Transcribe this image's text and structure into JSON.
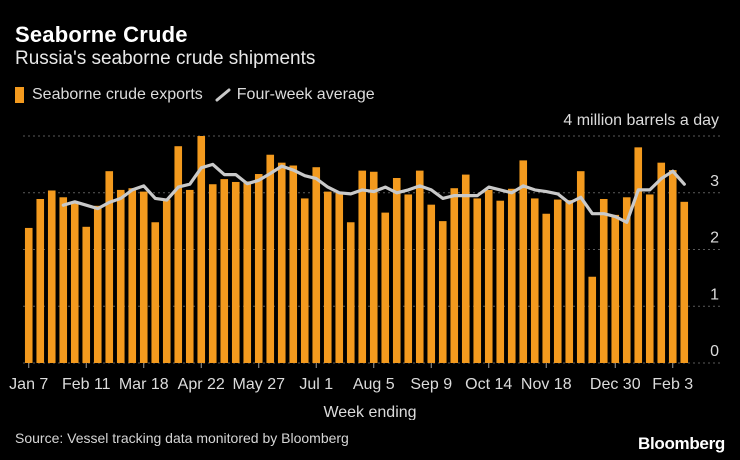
{
  "header": {
    "title": "Seaborne Crude",
    "subtitle": "Russia's seaborne crude shipments"
  },
  "legend": {
    "bars_label": "Seaborne crude exports",
    "line_label": "Four-week average"
  },
  "colors": {
    "bar": "#F39A1E",
    "line": "#C9C9C9",
    "grid": "#5a5a5a",
    "text": "#ffffff",
    "axis_text": "#dcdcdc"
  },
  "footer": {
    "source": "Source: Vessel tracking data monitored by Bloomberg",
    "brand": "Bloomberg"
  },
  "chart_data": {
    "type": "bar",
    "title": "Seaborne Crude",
    "subtitle": "Russia's seaborne crude shipments",
    "unit_label": "4 million barrels a day",
    "xlabel": "Week ending",
    "ylabel": "",
    "ylim": [
      0,
      4
    ],
    "yticks": [
      "0",
      "1",
      "2",
      "3"
    ],
    "xtick_labels": [
      "Jan 7",
      "Feb 11",
      "Mar 18",
      "Apr 22",
      "May 27",
      "Jul 1",
      "Aug 5",
      "Sep 9",
      "Oct 14",
      "Nov 18",
      "Dec 30",
      "Feb 3"
    ],
    "xtick_positions": [
      0,
      5,
      10,
      15,
      20,
      25,
      30,
      35,
      40,
      45,
      51,
      56
    ],
    "grid": true,
    "series": [
      {
        "name": "Seaborne crude exports",
        "type": "bar",
        "values": [
          2.38,
          2.89,
          3.04,
          2.92,
          2.82,
          2.4,
          2.77,
          3.38,
          3.05,
          3.08,
          3.02,
          2.48,
          2.88,
          3.82,
          3.05,
          4.0,
          3.15,
          3.24,
          3.19,
          3.2,
          3.33,
          3.67,
          3.53,
          3.48,
          2.9,
          3.45,
          3.02,
          3.0,
          2.48,
          3.39,
          3.37,
          2.65,
          3.26,
          2.97,
          3.39,
          2.79,
          2.5,
          3.08,
          3.32,
          2.9,
          3.05,
          2.86,
          3.07,
          3.57,
          2.9,
          2.63,
          2.88,
          2.87,
          3.38,
          1.52,
          2.89,
          2.61,
          2.92,
          3.8,
          2.97,
          3.53,
          3.4,
          2.84
        ]
      },
      {
        "name": "Four-week average",
        "type": "line",
        "start_index": 3,
        "values": [
          2.78,
          2.84,
          2.78,
          2.72,
          2.83,
          2.9,
          3.05,
          3.12,
          2.9,
          2.87,
          3.1,
          3.15,
          3.44,
          3.5,
          3.32,
          3.32,
          3.16,
          3.22,
          3.34,
          3.47,
          3.4,
          3.3,
          3.25,
          3.1,
          3.0,
          2.98,
          3.05,
          3.02,
          3.1,
          3.0,
          3.05,
          3.12,
          3.05,
          2.9,
          2.95,
          2.95,
          2.95,
          3.1,
          3.05,
          3.0,
          3.12,
          3.05,
          3.02,
          2.98,
          2.82,
          2.92,
          2.63,
          2.63,
          2.58,
          2.48,
          3.05,
          3.05,
          3.25,
          3.38,
          3.15
        ]
      }
    ]
  }
}
